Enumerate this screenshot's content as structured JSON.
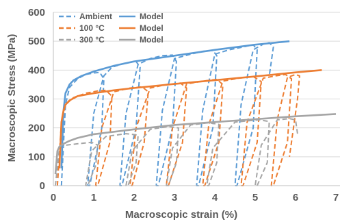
{
  "chart_data": {
    "type": "line",
    "xlabel": "Macroscopic strain (%)",
    "ylabel": "Macroscopic Stress (MPa)",
    "xlim": [
      0,
      7
    ],
    "ylim": [
      0,
      600
    ],
    "xticks": [
      "0",
      "1",
      "2",
      "3",
      "4",
      "5",
      "6",
      "7"
    ],
    "yticks": [
      "0",
      "100",
      "200",
      "300",
      "400",
      "500",
      "600"
    ],
    "grid": "horizontal",
    "legend_position": "top-left",
    "legend": [
      {
        "label": "Ambient",
        "style": "dashed",
        "color": "#5B9BD5"
      },
      {
        "label": "Model",
        "style": "solid",
        "color": "#5B9BD5"
      },
      {
        "label": "100 °C",
        "style": "dashed",
        "color": "#ED7D31"
      },
      {
        "label": "Model",
        "style": "solid",
        "color": "#ED7D31"
      },
      {
        "label": "300 °C",
        "style": "dashed",
        "color": "#A5A5A5"
      },
      {
        "label": "Model",
        "style": "solid",
        "color": "#A5A5A5"
      }
    ],
    "series": [
      {
        "name": "Model",
        "condition": "Ambient",
        "style": "solid",
        "color": "#5B9BD5",
        "x": [
          0.2,
          0.25,
          0.3,
          0.4,
          0.5,
          0.7,
          1.0,
          1.5,
          2.0,
          3.0,
          4.0,
          5.0,
          5.85
        ],
        "y": [
          60,
          260,
          320,
          350,
          365,
          380,
          395,
          415,
          430,
          450,
          470,
          488,
          500
        ]
      },
      {
        "name": "Model",
        "condition": "100 °C",
        "style": "solid",
        "color": "#ED7D31",
        "x": [
          0.15,
          0.2,
          0.25,
          0.3,
          0.4,
          0.6,
          1.0,
          1.5,
          2.0,
          3.0,
          4.0,
          5.0,
          6.0,
          6.65
        ],
        "y": [
          60,
          220,
          260,
          280,
          295,
          310,
          320,
          330,
          338,
          352,
          365,
          378,
          392,
          400
        ]
      },
      {
        "name": "Model",
        "condition": "300 °C",
        "style": "solid",
        "color": "#A5A5A5",
        "x": [
          0.05,
          0.1,
          0.15,
          0.25,
          0.4,
          0.6,
          1.0,
          2.0,
          3.0,
          4.0,
          5.0,
          6.0,
          7.0
        ],
        "y": [
          40,
          120,
          135,
          145,
          155,
          165,
          178,
          195,
          210,
          220,
          230,
          240,
          248
        ]
      },
      {
        "name": "Ambient",
        "style": "dashed",
        "color": "#5B9BD5",
        "x": [
          0.2,
          0.3,
          0.4,
          0.6,
          0.8,
          1.0,
          1.15,
          1.25,
          1.2,
          0.9,
          0.85,
          1.0,
          1.25,
          1.45,
          1.8,
          2.05,
          2.15,
          2.05,
          1.7,
          1.65,
          1.8,
          2.1,
          2.4,
          2.7,
          2.95,
          3.05,
          2.95,
          2.6,
          2.55,
          2.7,
          3.0,
          3.4,
          3.7,
          3.95,
          4.05,
          3.95,
          3.6,
          3.55,
          3.7,
          4.0,
          4.35,
          4.7,
          4.95,
          5.05,
          4.95,
          4.55,
          4.5,
          4.65,
          4.95,
          5.2,
          5.35,
          5.45,
          5.35
        ],
        "y": [
          0,
          280,
          340,
          370,
          385,
          390,
          392,
          370,
          200,
          0,
          0,
          250,
          380,
          410,
          425,
          430,
          410,
          200,
          0,
          0,
          250,
          420,
          440,
          450,
          452,
          430,
          200,
          0,
          0,
          260,
          440,
          455,
          465,
          468,
          450,
          200,
          0,
          0,
          260,
          455,
          470,
          480,
          488,
          470,
          200,
          0,
          0,
          280,
          470,
          490,
          495,
          480,
          380
        ]
      },
      {
        "name": "100 °C",
        "style": "dashed",
        "color": "#ED7D31",
        "x": [
          0.1,
          0.2,
          0.3,
          0.5,
          0.8,
          1.1,
          1.3,
          1.45,
          1.4,
          1.1,
          1.05,
          1.2,
          1.5,
          1.9,
          2.2,
          2.35,
          2.25,
          1.95,
          1.9,
          2.05,
          2.4,
          2.8,
          3.15,
          3.3,
          3.2,
          2.85,
          2.8,
          2.95,
          3.3,
          3.7,
          4.05,
          4.2,
          4.1,
          3.75,
          3.7,
          3.85,
          4.2,
          4.6,
          4.95,
          5.15,
          5.05,
          4.7,
          4.65,
          4.8,
          5.2,
          5.5,
          5.75,
          5.9,
          5.8,
          5.45,
          5.4,
          5.55,
          5.8,
          6.0,
          6.1,
          6.05,
          5.85
        ],
        "y": [
          0,
          220,
          280,
          305,
          320,
          328,
          330,
          310,
          150,
          0,
          0,
          200,
          325,
          338,
          342,
          325,
          150,
          0,
          0,
          200,
          338,
          350,
          355,
          338,
          150,
          0,
          0,
          200,
          352,
          362,
          368,
          350,
          150,
          0,
          0,
          210,
          362,
          372,
          378,
          360,
          150,
          0,
          0,
          220,
          372,
          380,
          385,
          370,
          150,
          0,
          0,
          230,
          375,
          385,
          380,
          300,
          100
        ]
      },
      {
        "name": "300 °C",
        "style": "dashed",
        "color": "#A5A5A5",
        "x": [
          0.05,
          0.15,
          0.3,
          0.6,
          0.95,
          1.1,
          1.05,
          0.85,
          0.8,
          0.95,
          1.3,
          1.8,
          2.1,
          2.05,
          1.85,
          1.8,
          1.95,
          2.4,
          2.85,
          3.1,
          3.05,
          2.85,
          2.8,
          2.95,
          3.4,
          3.85,
          4.1,
          4.05,
          3.85,
          3.8,
          3.95,
          4.5,
          5.1,
          5.35,
          5.3,
          5.05,
          5.0,
          5.15,
          5.55,
          5.85,
          6.0,
          6.05
        ],
        "y": [
          0,
          130,
          140,
          145,
          150,
          140,
          70,
          0,
          0,
          120,
          170,
          180,
          175,
          80,
          0,
          0,
          120,
          195,
          205,
          200,
          80,
          0,
          0,
          130,
          210,
          218,
          212,
          80,
          0,
          0,
          130,
          220,
          228,
          222,
          80,
          0,
          0,
          140,
          228,
          232,
          228,
          180
        ]
      }
    ]
  }
}
